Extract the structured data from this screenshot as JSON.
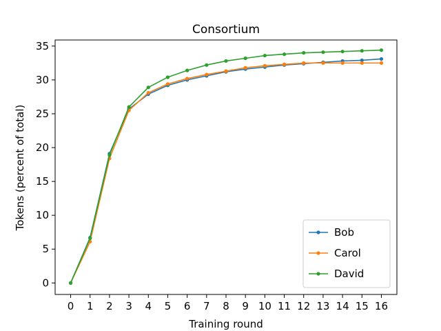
{
  "chart_data": {
    "type": "line",
    "title": "Consortium",
    "xlabel": "Training round",
    "ylabel": "Tokens (percent of total)",
    "x": [
      0,
      1,
      2,
      3,
      4,
      5,
      6,
      7,
      8,
      9,
      10,
      11,
      12,
      13,
      14,
      15,
      16
    ],
    "xlim": [
      -0.8,
      16.8
    ],
    "ylim": [
      -1.7,
      35.9
    ],
    "xticks": [
      "0",
      "1",
      "2",
      "3",
      "4",
      "5",
      "6",
      "7",
      "8",
      "9",
      "10",
      "11",
      "12",
      "13",
      "14",
      "15",
      "16"
    ],
    "yticks": [
      "0",
      "5",
      "10",
      "15",
      "20",
      "25",
      "30",
      "35"
    ],
    "grid": false,
    "legend_position": "lower-right",
    "series": [
      {
        "name": "Bob",
        "color": "#1f77b4",
        "values": [
          0,
          6.7,
          19.1,
          25.7,
          27.9,
          29.2,
          30.0,
          30.6,
          31.2,
          31.6,
          31.9,
          32.2,
          32.4,
          32.6,
          32.8,
          32.9,
          33.1
        ]
      },
      {
        "name": "Carol",
        "color": "#ff7f0e",
        "values": [
          0,
          6.1,
          18.4,
          25.5,
          28.1,
          29.4,
          30.2,
          30.8,
          31.3,
          31.8,
          32.1,
          32.3,
          32.5,
          32.5,
          32.5,
          32.5,
          32.5
        ]
      },
      {
        "name": "David",
        "color": "#2ca02c",
        "values": [
          0,
          6.6,
          18.9,
          26.0,
          28.9,
          30.4,
          31.4,
          32.2,
          32.8,
          33.2,
          33.6,
          33.8,
          34.0,
          34.1,
          34.2,
          34.3,
          34.4
        ]
      }
    ]
  }
}
